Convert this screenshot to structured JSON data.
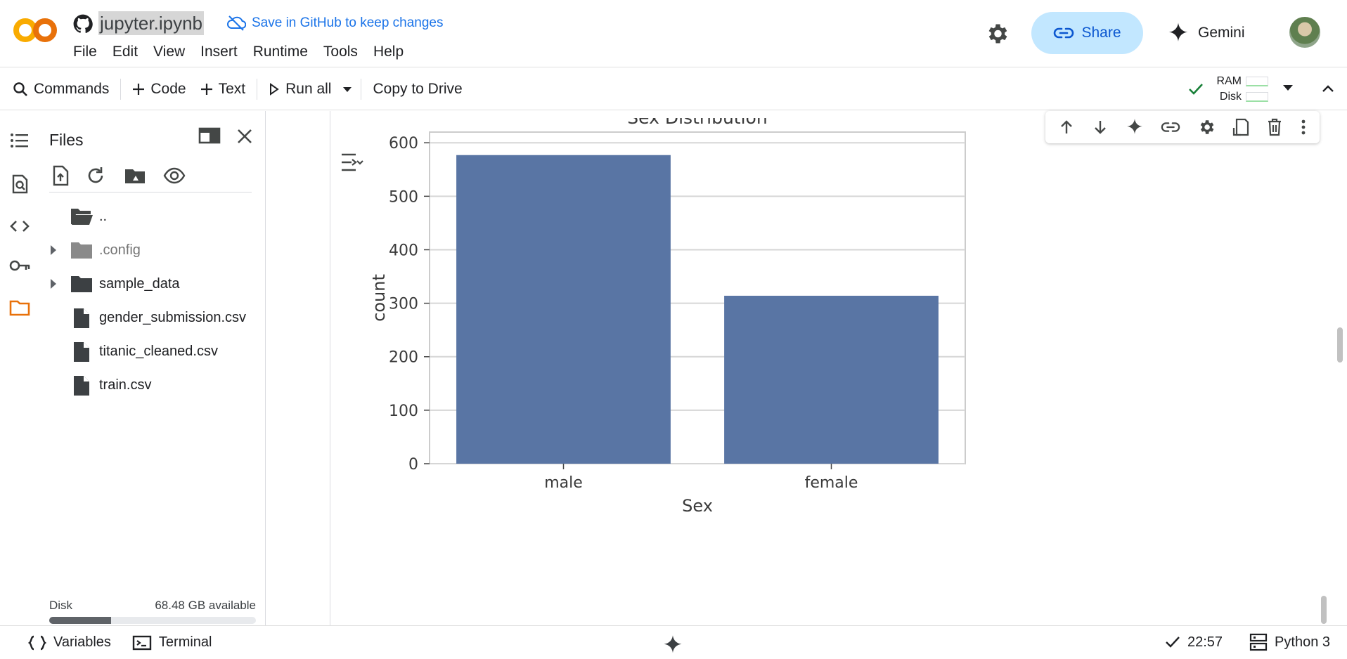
{
  "header": {
    "notebook_title": "jupyter.ipynb",
    "save_github_label": "Save in GitHub to keep changes",
    "menu": [
      "File",
      "Edit",
      "View",
      "Insert",
      "Runtime",
      "Tools",
      "Help"
    ],
    "share_label": "Share",
    "gemini_label": "Gemini"
  },
  "toolbar": {
    "commands_label": "Commands",
    "code_label": "Code",
    "text_label": "Text",
    "run_all_label": "Run all",
    "copy_drive_label": "Copy to Drive",
    "ram_label": "RAM",
    "disk_label": "Disk"
  },
  "files": {
    "title": "Files",
    "tree": [
      {
        "name": "..",
        "kind": "folder-open",
        "expandable": false
      },
      {
        "name": ".config",
        "kind": "folder-muted",
        "expandable": true
      },
      {
        "name": "sample_data",
        "kind": "folder",
        "expandable": true
      },
      {
        "name": "gender_submission.csv",
        "kind": "file",
        "expandable": false
      },
      {
        "name": "titanic_cleaned.csv",
        "kind": "file",
        "expandable": false
      },
      {
        "name": "train.csv",
        "kind": "file",
        "expandable": false
      }
    ],
    "disk_label": "Disk",
    "disk_available": "68.48 GB available",
    "disk_used_fraction": 0.3
  },
  "chart_data": {
    "type": "bar",
    "title": "Sex Distribution",
    "xlabel": "Sex",
    "ylabel": "count",
    "categories": [
      "male",
      "female"
    ],
    "values": [
      577,
      314
    ],
    "ylim": [
      0,
      620
    ],
    "yticks": [
      0,
      100,
      200,
      300,
      400,
      500,
      600
    ],
    "grid": true,
    "bar_color": "#5975a4"
  },
  "statusbar": {
    "variables_label": "Variables",
    "terminal_label": "Terminal",
    "time": "22:57",
    "runtime_label": "Python 3"
  },
  "colors": {
    "accent": "#1a73e8",
    "share_bg": "#c2e7ff",
    "logo_orange": "#f9ab00",
    "logo_dark_orange": "#e8710a"
  }
}
